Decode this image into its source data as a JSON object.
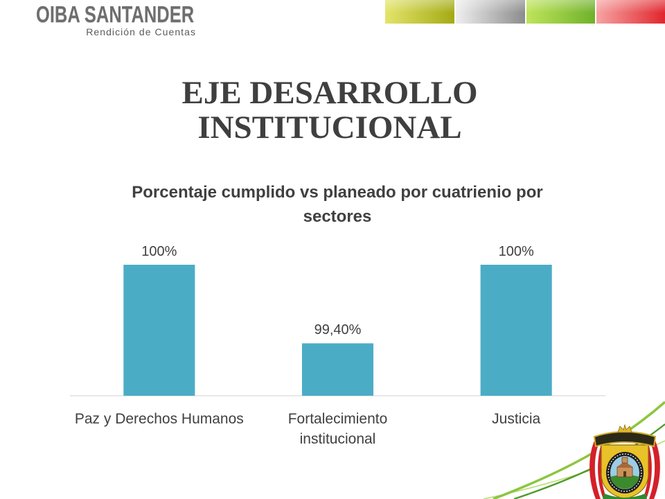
{
  "header": {
    "brand": "OIBA SANTANDER",
    "subtitle": "Rendición de Cuentas",
    "color_bars": [
      {
        "from": "#e3e46a",
        "to": "#a3aa14"
      },
      {
        "from": "#efefef",
        "to": "#8c8c8c"
      },
      {
        "from": "#bfe45a",
        "to": "#6fb12b"
      },
      {
        "from": "#f6a3a3",
        "to": "#e0262c"
      }
    ]
  },
  "slide": {
    "title": "EJE DESARROLLO INSTITUCIONAL"
  },
  "chart_data": {
    "type": "bar",
    "title": "Porcentaje cumplido vs planeado por cuatrienio por sectores",
    "categories": [
      "Paz y Derechos Humanos",
      "Fortalecimiento institucional",
      "Justicia"
    ],
    "values": [
      100,
      99.4,
      100
    ],
    "data_labels": [
      "100%",
      "99,40%",
      "100%"
    ],
    "xlabel": "",
    "ylabel": "",
    "ylim": [
      99,
      100
    ],
    "y_axis_visible": false,
    "grid": false,
    "legend": "none",
    "bar_color": "#4bacc6",
    "label_color": "#404040"
  },
  "decor": {
    "logo_icon": "coat-of-arms-icon"
  }
}
